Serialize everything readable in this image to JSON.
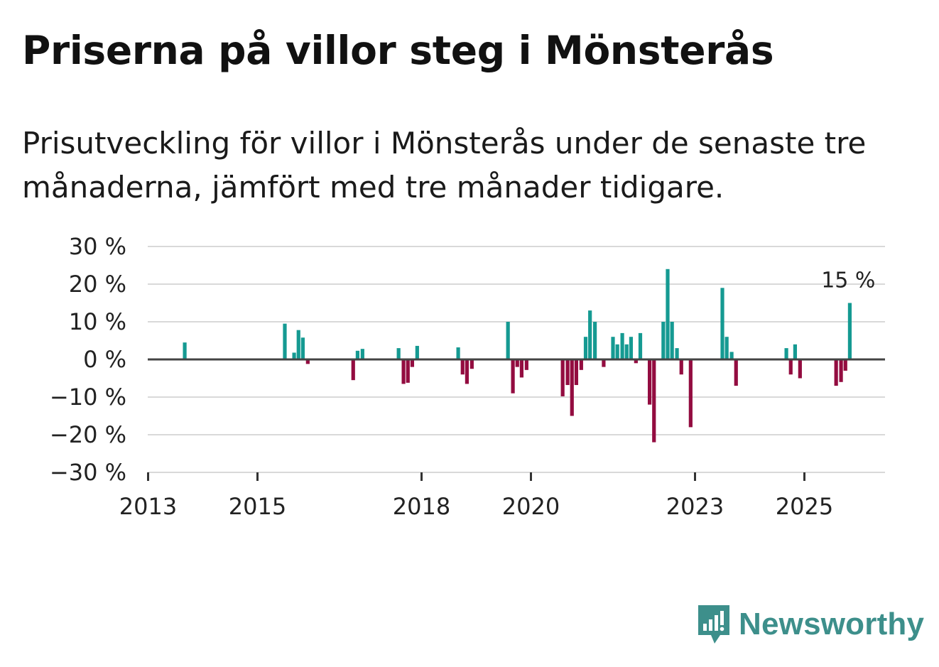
{
  "title": "Priserna på villor steg i Mönsterås",
  "subtitle": "Prisutveckling för villor i Mönsterås under de senaste tre månaderna, jämfört med tre månader tidigare.",
  "brand": {
    "name": "Newsworthy",
    "icon": "newsworthy-logo-icon"
  },
  "colors": {
    "positive": "#159a92",
    "negative": "#930c40",
    "grid": "#d9d9d9",
    "zero_line": "#444444",
    "brand": "#3d8f8b"
  },
  "chart_data": {
    "type": "bar",
    "title": "Priserna på villor steg i Mönsterås",
    "ylabel": "",
    "xlabel": "",
    "ylim": [
      -30,
      30
    ],
    "xlim": [
      2013.0,
      2026.5
    ],
    "y_ticks": [
      30,
      20,
      10,
      0,
      -10,
      -20,
      -30
    ],
    "y_tick_labels": [
      "30 %",
      "20 %",
      "10 %",
      "0 %",
      "−10 %",
      "−20 %",
      "−30 %"
    ],
    "x_ticks": [
      2013,
      2015,
      2018,
      2020,
      2023,
      2025
    ],
    "x_tick_labels": [
      "2013",
      "2015",
      "2018",
      "2020",
      "2023",
      "2025"
    ],
    "grid": true,
    "annotations": [
      {
        "text": "15 %",
        "x": 2025.83,
        "y": 15
      }
    ],
    "x": [
      2013.67,
      2015.5,
      2015.67,
      2015.75,
      2015.83,
      2015.92,
      2016.75,
      2016.83,
      2016.92,
      2017.58,
      2017.67,
      2017.75,
      2017.83,
      2017.92,
      2018.67,
      2018.75,
      2018.83,
      2018.92,
      2019.58,
      2019.67,
      2019.75,
      2019.83,
      2019.92,
      2020.58,
      2020.67,
      2020.75,
      2020.83,
      2020.92,
      2021.0,
      2021.08,
      2021.17,
      2021.33,
      2021.5,
      2021.58,
      2021.67,
      2021.75,
      2021.83,
      2021.92,
      2022.0,
      2022.17,
      2022.25,
      2022.42,
      2022.5,
      2022.58,
      2022.67,
      2022.75,
      2022.92,
      2023.5,
      2023.58,
      2023.67,
      2023.75,
      2024.67,
      2024.75,
      2024.83,
      2024.92,
      2025.58,
      2025.67,
      2025.75,
      2025.83
    ],
    "values": [
      4.5,
      9.5,
      1.8,
      7.8,
      5.8,
      -1.2,
      -5.5,
      2.3,
      2.8,
      3.0,
      -6.5,
      -6.2,
      -2.0,
      3.6,
      3.2,
      -4.0,
      -6.5,
      -2.5,
      10.0,
      -9.0,
      -2.0,
      -4.8,
      -2.8,
      -9.8,
      -6.8,
      -15.0,
      -6.8,
      -2.8,
      6.0,
      13.0,
      10.0,
      -2.0,
      6.0,
      4.0,
      7.0,
      4.0,
      6.0,
      -1.0,
      7.0,
      -12.0,
      -22.0,
      10.0,
      24.0,
      10.0,
      3.0,
      -4.0,
      -18.0,
      19.0,
      6.0,
      2.0,
      -7.0,
      3.0,
      -4.0,
      4.0,
      -5.0,
      -7.0,
      -6.0,
      -3.0,
      15.0
    ]
  }
}
